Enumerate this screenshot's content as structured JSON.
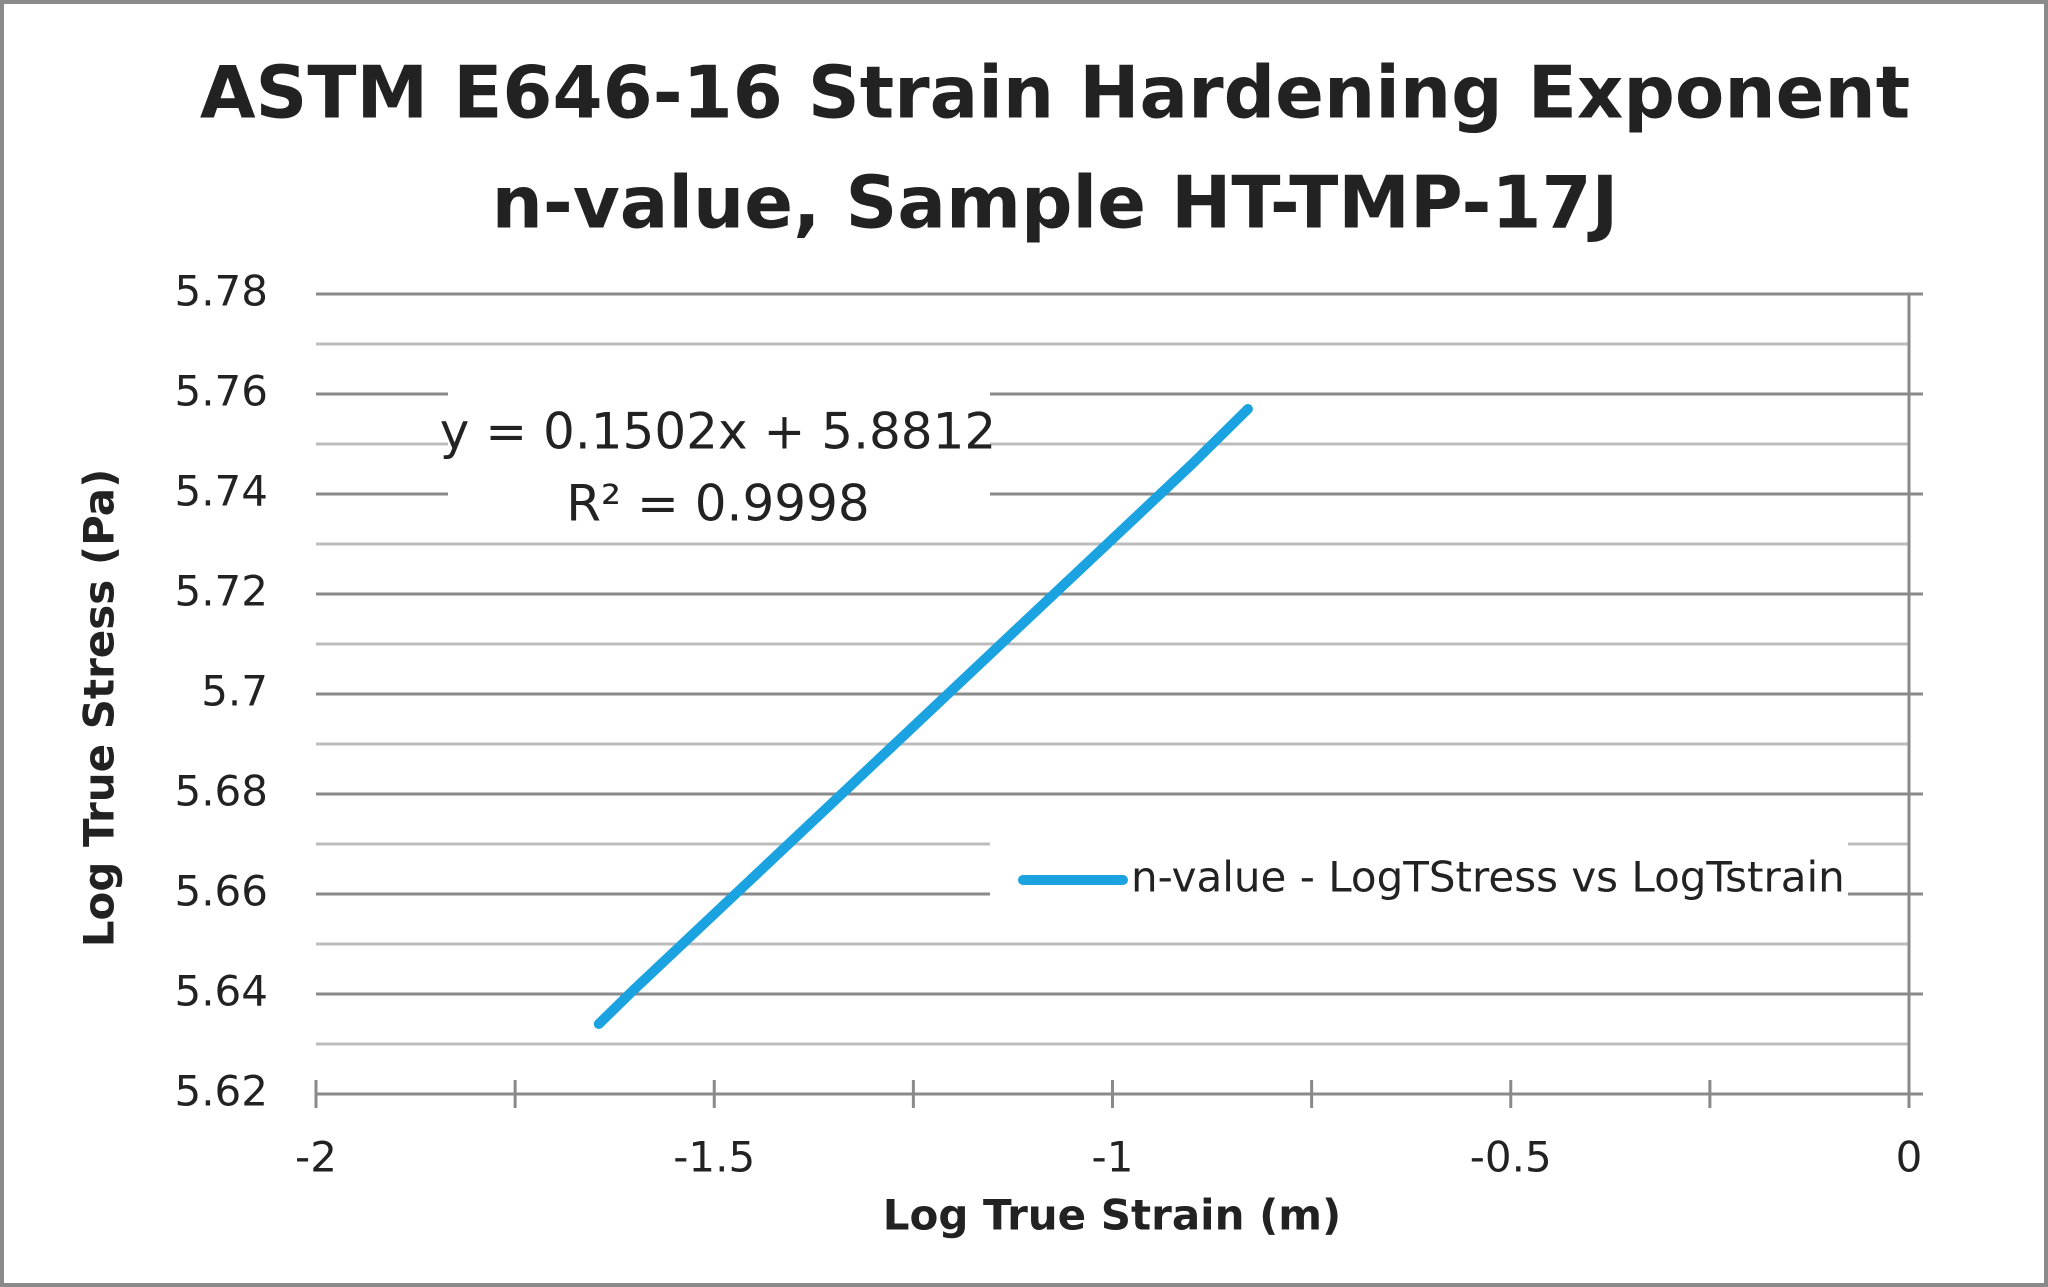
{
  "chart_data": {
    "type": "line",
    "title": [
      "ASTM E646-16 Strain Hardening Exponent",
      "n-value, Sample HT-TMP-17J"
    ],
    "x_label": "Log True Strain (m)",
    "y_label": "Log True Stress (Pa)",
    "x": [
      -1.645,
      -1.6,
      -1.5,
      -1.4,
      -1.3,
      -1.2,
      -1.1,
      -1.0,
      -0.9,
      -0.83
    ],
    "series": [
      {
        "name": "n-value - LogTStress vs LogTstrain",
        "color": "#1aa3e0",
        "values": [
          5.634,
          5.641,
          5.656,
          5.671,
          5.686,
          5.701,
          5.716,
          5.731,
          5.746,
          5.757
        ]
      }
    ],
    "annotations": [
      "y = 0.1502x + 5.8812",
      "R² = 0.9998"
    ],
    "xlim": [
      -2,
      0
    ],
    "xticks": [
      -2,
      -1.5,
      -1,
      -0.5,
      0
    ],
    "minor_xticks": [
      -1.75,
      -1.25,
      -0.75,
      -0.25
    ],
    "ylim": [
      5.62,
      5.78
    ],
    "yticks": [
      5.62,
      5.64,
      5.66,
      5.68,
      5.7,
      5.72,
      5.74,
      5.76,
      5.78
    ],
    "minor_yticks": [
      5.63,
      5.65,
      5.67,
      5.69,
      5.71,
      5.73,
      5.75,
      5.77
    ],
    "grid": true,
    "legend": "right"
  }
}
